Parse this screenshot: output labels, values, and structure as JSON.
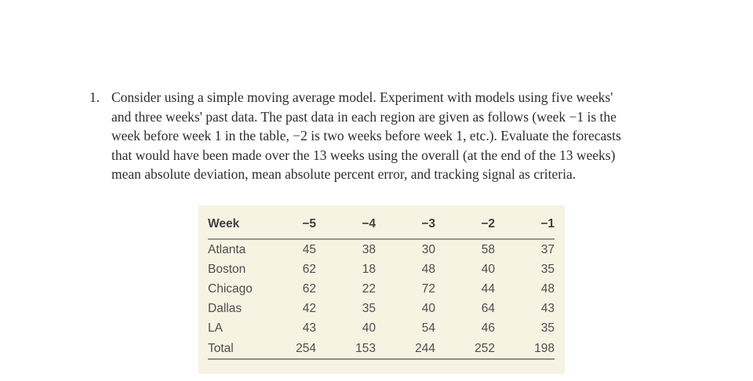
{
  "question": {
    "number": "1.",
    "lines": [
      "Consider using a simple moving average model. Experiment with models using five weeks'",
      "and three weeks' past data. The past data in each region are given as follows (week −1 is the",
      "week before week 1 in the table, −2 is two weeks before week 1, etc.). Evaluate the forecasts",
      "that would have been made over the 13 weeks using the overall (at the end of the 13 weeks)",
      "mean absolute deviation, mean absolute percent error, and tracking signal as criteria."
    ]
  },
  "table": {
    "header": [
      "Week",
      "−5",
      "−4",
      "−3",
      "−2",
      "−1"
    ],
    "rows": [
      {
        "label": "Atlanta",
        "values": [
          "45",
          "38",
          "30",
          "58",
          "37"
        ]
      },
      {
        "label": "Boston",
        "values": [
          "62",
          "18",
          "48",
          "40",
          "35"
        ]
      },
      {
        "label": "Chicago",
        "values": [
          "62",
          "22",
          "72",
          "44",
          "48"
        ]
      },
      {
        "label": "Dallas",
        "values": [
          "42",
          "35",
          "40",
          "64",
          "43"
        ]
      },
      {
        "label": "LA",
        "values": [
          "43",
          "40",
          "54",
          "46",
          "35"
        ]
      },
      {
        "label": "Total",
        "values": [
          "254",
          "153",
          "244",
          "252",
          "198"
        ]
      }
    ]
  },
  "colors": {
    "page_background": "#ffffff",
    "body_text": "#2d2d2d",
    "table_background": "#f6f3e3",
    "table_text": "#4e4e4e",
    "rule": "#97978f"
  }
}
